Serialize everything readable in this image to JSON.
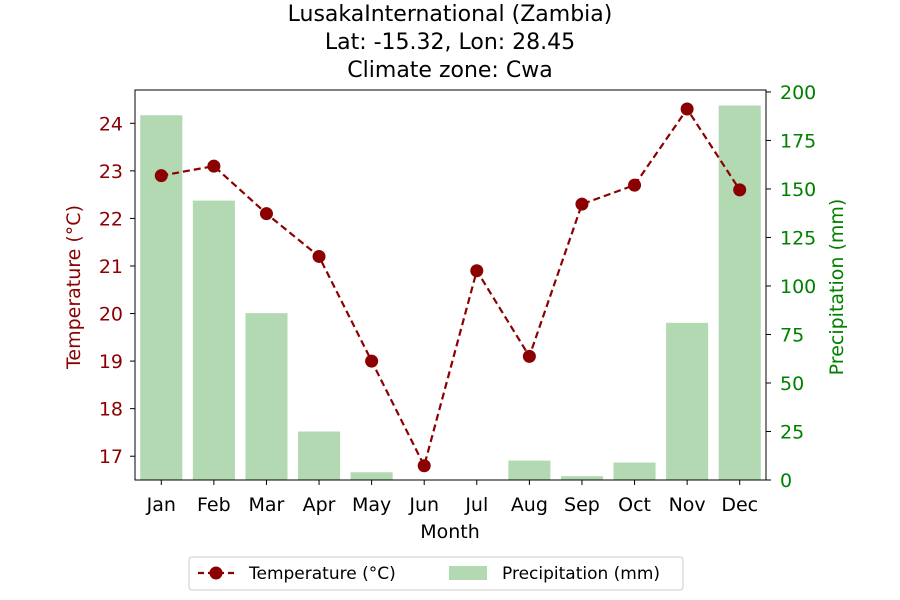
{
  "chart_data": {
    "type": "bar+line",
    "title": {
      "line1": "LusakaInternational (Zambia)",
      "line2": "Lat: -15.32, Lon: 28.45",
      "line3": "Climate zone: Cwa"
    },
    "xlabel": "Month",
    "ylabel_left": "Temperature (°C)",
    "ylabel_right": "Precipitation (mm)",
    "categories": [
      "Jan",
      "Feb",
      "Mar",
      "Apr",
      "May",
      "Jun",
      "Jul",
      "Aug",
      "Sep",
      "Oct",
      "Nov",
      "Dec"
    ],
    "series": [
      {
        "name": "Temperature (°C)",
        "type": "line",
        "axis": "left",
        "style": "dashed",
        "marker": "circle",
        "color": "#8b0000",
        "values": [
          22.9,
          23.1,
          22.1,
          21.2,
          19.0,
          16.8,
          20.9,
          19.1,
          22.3,
          22.7,
          24.3,
          22.6
        ]
      },
      {
        "name": "Precipitation (mm)",
        "type": "bar",
        "axis": "right",
        "color": "#b2d9b2",
        "values": [
          188,
          144,
          86,
          25,
          4,
          0,
          0,
          10,
          2,
          9,
          81,
          193
        ]
      }
    ],
    "ylim_left": [
      16.5,
      24.7
    ],
    "ylim_right": [
      0,
      201
    ],
    "yticks_left": [
      17,
      18,
      19,
      20,
      21,
      22,
      23,
      24
    ],
    "yticks_right": [
      0,
      25,
      50,
      75,
      100,
      125,
      150,
      175,
      200
    ],
    "left_axis_color": "#8b0000",
    "right_axis_color": "#008000",
    "grid": false,
    "legend_position": "bottom-center"
  }
}
